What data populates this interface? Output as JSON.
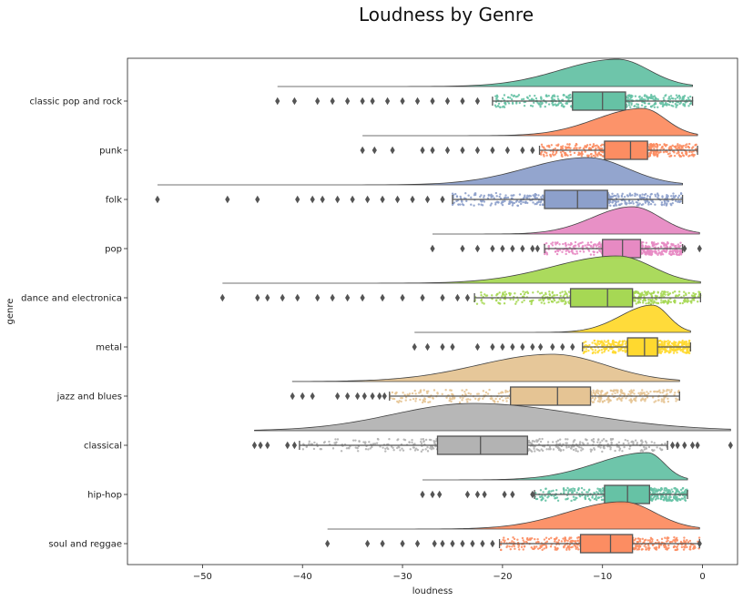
{
  "chart_data": {
    "type": "raincloud",
    "title": "Loudness by Genre",
    "xlabel": "loudness",
    "ylabel": "genre",
    "xlim": [
      -57.5,
      3.5
    ],
    "x_ticks": [
      -50,
      -40,
      -30,
      -20,
      -10,
      0
    ],
    "x_tick_labels": [
      "−50",
      "−40",
      "−30",
      "−20",
      "−10",
      "0"
    ],
    "grid": false,
    "categories": [
      "classic pop and rock",
      "punk",
      "folk",
      "pop",
      "dance and electronica",
      "metal",
      "jazz and blues",
      "classical",
      "hip-hop",
      "soul and reggae"
    ],
    "series": [
      {
        "category": "classic pop and rock",
        "color": "#66c2a5",
        "min": -42.5,
        "max": -1.0,
        "q1": -13.0,
        "median": -10.0,
        "q3": -7.7,
        "whisker_low": -21.0,
        "whisker_high": -1.0,
        "mode": -8.5,
        "outliers": [
          -42.5,
          -40.8,
          -38.5,
          -37.0,
          -35.5,
          -34.0,
          -33.0,
          -31.5,
          -30.0,
          -28.5,
          -27.0,
          -25.5,
          -24.0,
          -22.5
        ]
      },
      {
        "category": "punk",
        "color": "#fc8d62",
        "min": -34.0,
        "max": -0.5,
        "q1": -9.8,
        "median": -7.2,
        "q3": -5.5,
        "whisker_low": -16.3,
        "whisker_high": -0.5,
        "mode": -6.0,
        "outliers": [
          -34.0,
          -32.8,
          -31.0,
          -28.0,
          -27.0,
          -25.5,
          -24.0,
          -22.5,
          -21.0,
          -19.5,
          -18.0,
          -17.0
        ]
      },
      {
        "category": "folk",
        "color": "#8da0cb",
        "min": -54.5,
        "max": -2.0,
        "q1": -15.8,
        "median": -12.5,
        "q3": -9.5,
        "whisker_low": -25.0,
        "whisker_high": -2.0,
        "mode": -11.5,
        "outliers": [
          -54.5,
          -47.5,
          -44.5,
          -40.5,
          -39.0,
          -38.0,
          -36.5,
          -35.0,
          -33.5,
          -32.0,
          -30.5,
          -29.0,
          -27.5,
          -26.0
        ]
      },
      {
        "category": "pop",
        "color": "#e78ac3",
        "min": -27.0,
        "max": -0.3,
        "q1": -10.0,
        "median": -8.0,
        "q3": -6.2,
        "whisker_low": -15.8,
        "whisker_high": -2.0,
        "mode": -7.0,
        "outliers": [
          -27.0,
          -24.0,
          -22.5,
          -21.0,
          -20.0,
          -19.0,
          -18.0,
          -17.0,
          -16.5,
          -1.8,
          -0.3
        ]
      },
      {
        "category": "dance and electronica",
        "color": "#a6d854",
        "min": -48.0,
        "max": -0.2,
        "q1": -13.2,
        "median": -9.5,
        "q3": -7.0,
        "whisker_low": -22.8,
        "whisker_high": -0.2,
        "mode": -8.5,
        "outliers": [
          -48.0,
          -44.5,
          -43.5,
          -42.0,
          -40.5,
          -38.5,
          -37.0,
          -35.5,
          -34.0,
          -32.0,
          -30.0,
          -28.0,
          -26.0,
          -24.5,
          -23.5
        ]
      },
      {
        "category": "metal",
        "color": "#ffd92f",
        "min": -28.8,
        "max": -1.2,
        "q1": -7.5,
        "median": -5.8,
        "q3": -4.5,
        "whisker_low": -12.0,
        "whisker_high": -1.2,
        "mode": -5.0,
        "outliers": [
          -28.8,
          -27.5,
          -26.0,
          -25.0,
          -22.5,
          -21.0,
          -20.0,
          -19.0,
          -18.0,
          -17.0,
          -16.2,
          -15.0,
          -14.0,
          -13.0
        ]
      },
      {
        "category": "jazz and blues",
        "color": "#e5c494",
        "min": -41.0,
        "max": -2.3,
        "q1": -19.2,
        "median": -14.5,
        "q3": -11.2,
        "whisker_low": -31.3,
        "whisker_high": -2.3,
        "mode": -15.0,
        "outliers": [
          -41.0,
          -40.0,
          -39.0,
          -36.5,
          -35.5,
          -34.5,
          -33.8,
          -33.0,
          -32.3,
          -31.8
        ]
      },
      {
        "category": "classical",
        "color": "#b3b3b3",
        "min": -44.8,
        "max": 2.8,
        "q1": -26.5,
        "median": -22.2,
        "q3": -17.5,
        "whisker_low": -40.3,
        "whisker_high": -3.5,
        "mode": -23.0,
        "outliers": [
          -44.8,
          -44.2,
          -43.5,
          -41.5,
          -40.8,
          -3.0,
          -2.5,
          -1.8,
          -1.0,
          -0.5,
          2.8
        ]
      },
      {
        "category": "hip-hop",
        "color": "#66c2a5",
        "min": -28.0,
        "max": -1.5,
        "q1": -9.8,
        "median": -7.5,
        "q3": -5.3,
        "whisker_low": -16.8,
        "whisker_high": -1.5,
        "mode": -5.5,
        "outliers": [
          -28.0,
          -27.0,
          -26.3,
          -23.5,
          -22.5,
          -21.8,
          -19.8,
          -19.0,
          -17.0
        ]
      },
      {
        "category": "soul and reggae",
        "color": "#fc8d62",
        "min": -37.5,
        "max": -0.3,
        "q1": -12.2,
        "median": -9.2,
        "q3": -7.0,
        "whisker_low": -20.3,
        "whisker_high": -0.3,
        "mode": -8.0,
        "outliers": [
          -37.5,
          -33.5,
          -32.0,
          -30.0,
          -28.5,
          -26.8,
          -26.0,
          -25.0,
          -24.0,
          -23.0,
          -22.0,
          -21.0,
          -0.3
        ]
      }
    ]
  }
}
